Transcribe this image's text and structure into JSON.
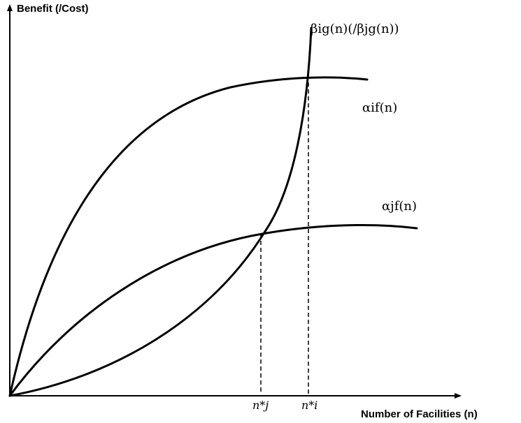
{
  "axes": {
    "y_label": "Benefit (/Cost)",
    "x_label": "Number of Facilities (n)"
  },
  "curves": {
    "cost_label": "βig(n)(/βjg(n))",
    "benefit_i_label": "αif(n)",
    "benefit_j_label": "αjf(n)"
  },
  "ticks": {
    "nj_star": "n*j",
    "ni_star": "n*i"
  }
}
